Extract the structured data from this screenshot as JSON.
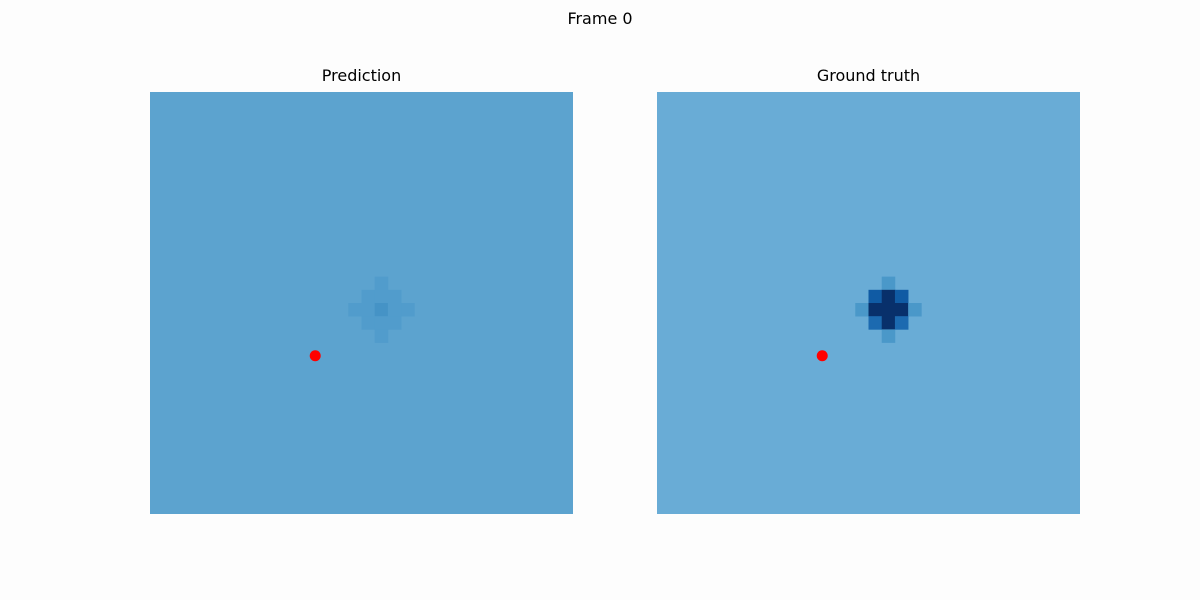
{
  "figure": {
    "suptitle": "Frame 0"
  },
  "chart_data": [
    {
      "type": "heatmap",
      "title": "Prediction",
      "grid_size": [
        32,
        32
      ],
      "colormap": "Blues",
      "axes_visible": false,
      "background_color": "#5ca3cf",
      "cells": [
        {
          "row": 14,
          "col": 17,
          "color": "#519ccc"
        },
        {
          "row": 15,
          "col": 16,
          "color": "#519ccc"
        },
        {
          "row": 15,
          "col": 17,
          "color": "#519ccc"
        },
        {
          "row": 15,
          "col": 18,
          "color": "#519ccc"
        },
        {
          "row": 16,
          "col": 15,
          "color": "#519ccc"
        },
        {
          "row": 16,
          "col": 16,
          "color": "#519ccc"
        },
        {
          "row": 16,
          "col": 17,
          "color": "#4593c6"
        },
        {
          "row": 16,
          "col": 18,
          "color": "#519ccc"
        },
        {
          "row": 16,
          "col": 19,
          "color": "#519ccc"
        },
        {
          "row": 17,
          "col": 16,
          "color": "#519ccc"
        },
        {
          "row": 17,
          "col": 17,
          "color": "#519ccc"
        },
        {
          "row": 17,
          "col": 18,
          "color": "#519ccc"
        },
        {
          "row": 18,
          "col": 17,
          "color": "#519ccc"
        }
      ],
      "marker": {
        "row": 19.5,
        "col": 12.0,
        "color": "#ff0000"
      }
    },
    {
      "type": "heatmap",
      "title": "Ground truth",
      "grid_size": [
        32,
        32
      ],
      "colormap": "Blues",
      "axes_visible": false,
      "background_color": "#69acd6",
      "cells": [
        {
          "row": 14,
          "col": 17,
          "color": "#4a98c9"
        },
        {
          "row": 15,
          "col": 16,
          "color": "#105ba4"
        },
        {
          "row": 15,
          "col": 17,
          "color": "#08306b"
        },
        {
          "row": 15,
          "col": 18,
          "color": "#105ba4"
        },
        {
          "row": 16,
          "col": 15,
          "color": "#4a98c9"
        },
        {
          "row": 16,
          "col": 16,
          "color": "#08306b"
        },
        {
          "row": 16,
          "col": 17,
          "color": "#08306b"
        },
        {
          "row": 16,
          "col": 18,
          "color": "#08306b"
        },
        {
          "row": 16,
          "col": 19,
          "color": "#4a98c9"
        },
        {
          "row": 17,
          "col": 16,
          "color": "#1c6ab0"
        },
        {
          "row": 17,
          "col": 17,
          "color": "#08306b"
        },
        {
          "row": 17,
          "col": 18,
          "color": "#1c6ab0"
        },
        {
          "row": 18,
          "col": 17,
          "color": "#4a98c9"
        }
      ],
      "marker": {
        "row": 19.5,
        "col": 12.0,
        "color": "#ff0000"
      }
    }
  ]
}
